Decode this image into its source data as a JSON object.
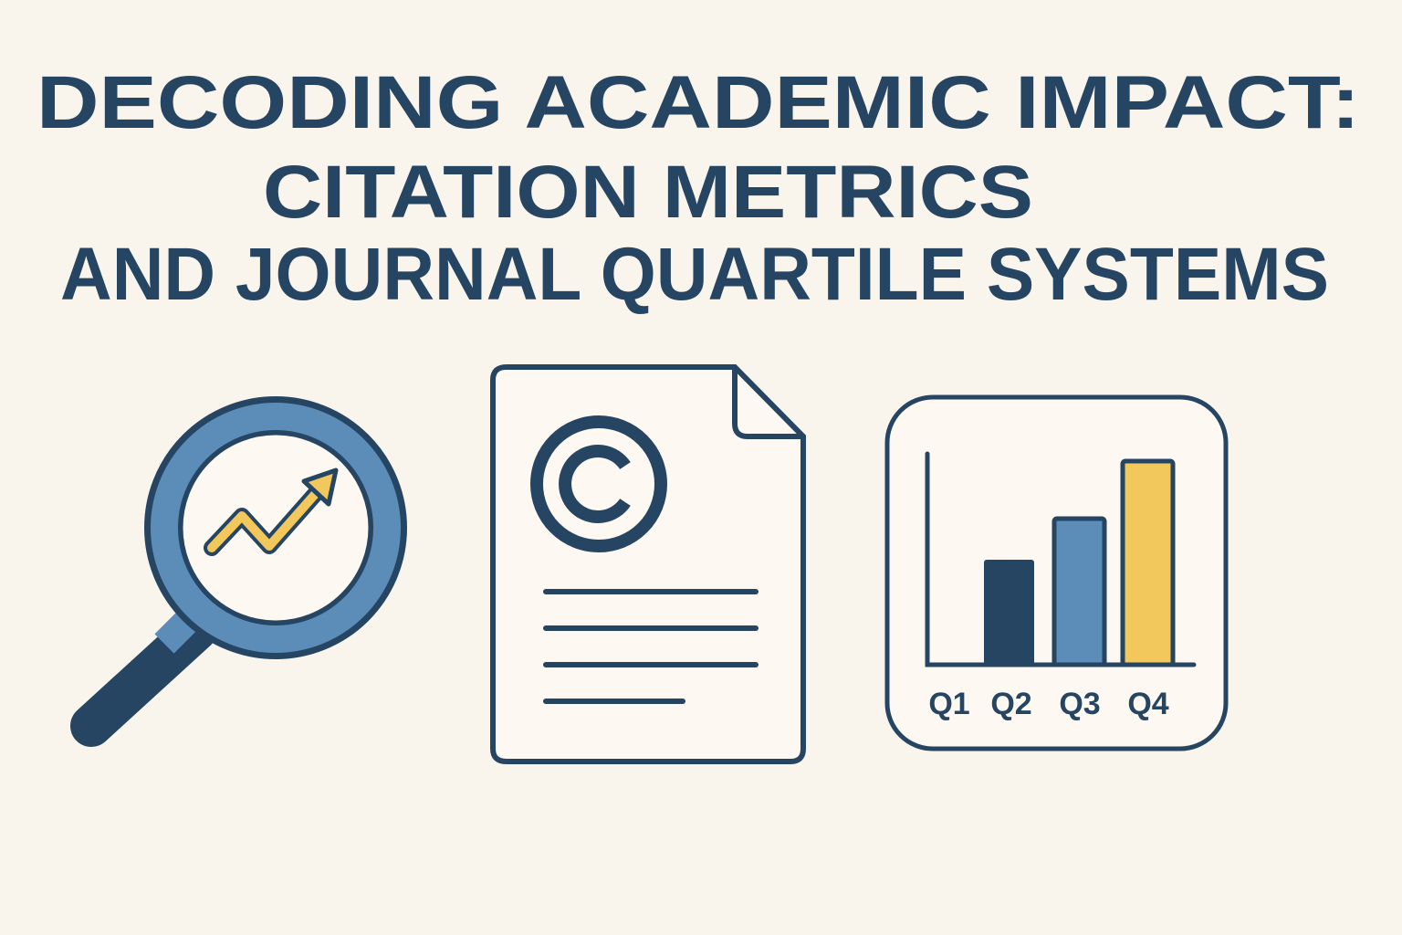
{
  "title": {
    "lines": [
      "DECODING ACADEMIC IMPACT:",
      "CITATION METRICS",
      "AND JOURNAL QUARTILE SYSTEMS"
    ]
  },
  "quartile_icon": {
    "labels": [
      "Q1",
      "Q2",
      "Q3",
      "Q4"
    ]
  }
}
